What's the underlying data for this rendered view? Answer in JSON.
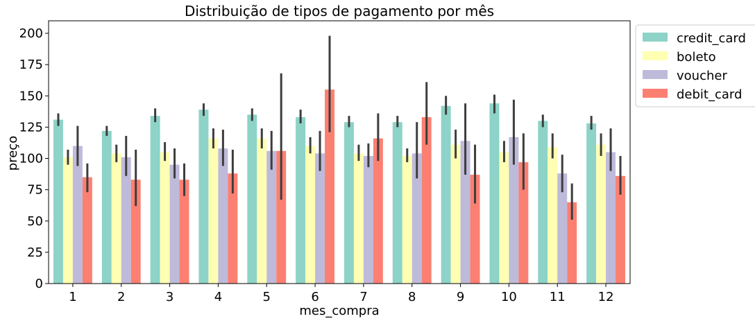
{
  "chart_data": {
    "type": "bar",
    "title": "Distribuição de tipos de pagamento por mês",
    "xlabel": "mes_compra",
    "ylabel": "preço",
    "ylim": [
      0,
      210
    ],
    "yticks": [
      0,
      25,
      50,
      75,
      100,
      125,
      150,
      175,
      200
    ],
    "categories": [
      "1",
      "2",
      "3",
      "4",
      "5",
      "6",
      "7",
      "8",
      "9",
      "10",
      "11",
      "12"
    ],
    "legend_position": "outside-top-right",
    "grid": false,
    "series": [
      {
        "name": "credit_card",
        "color": "#8dd3c7",
        "values": [
          131,
          122,
          134,
          139,
          135,
          133,
          129,
          129,
          142,
          144,
          130,
          128
        ],
        "ci_low": [
          126,
          118,
          129,
          134,
          130,
          128,
          125,
          125,
          135,
          136,
          125,
          123
        ],
        "ci_high": [
          136,
          126,
          140,
          144,
          140,
          139,
          134,
          134,
          150,
          151,
          135,
          134
        ]
      },
      {
        "name": "boleto",
        "color": "#ffffb3",
        "values": [
          101,
          104,
          105,
          116,
          116,
          110,
          104,
          102,
          111,
          105,
          109,
          111
        ],
        "ci_low": [
          95,
          97,
          98,
          108,
          108,
          104,
          98,
          97,
          100,
          97,
          100,
          102
        ],
        "ci_high": [
          107,
          111,
          113,
          124,
          124,
          117,
          111,
          108,
          123,
          114,
          120,
          120
        ]
      },
      {
        "name": "voucher",
        "color": "#bebada",
        "values": [
          110,
          101,
          95,
          108,
          106,
          104,
          102,
          104,
          114,
          117,
          88,
          105
        ],
        "ci_low": [
          94,
          86,
          84,
          94,
          91,
          90,
          93,
          84,
          87,
          95,
          73,
          90
        ],
        "ci_high": [
          126,
          118,
          108,
          123,
          122,
          122,
          112,
          129,
          144,
          147,
          103,
          124
        ]
      },
      {
        "name": "debit_card",
        "color": "#fb8072",
        "values": [
          85,
          83,
          83,
          88,
          106,
          155,
          116,
          133,
          87,
          97,
          65,
          86
        ],
        "ci_low": [
          73,
          62,
          70,
          72,
          67,
          121,
          98,
          111,
          64,
          75,
          51,
          71
        ],
        "ci_high": [
          96,
          107,
          96,
          107,
          168,
          198,
          136,
          161,
          111,
          120,
          80,
          102
        ]
      }
    ]
  }
}
